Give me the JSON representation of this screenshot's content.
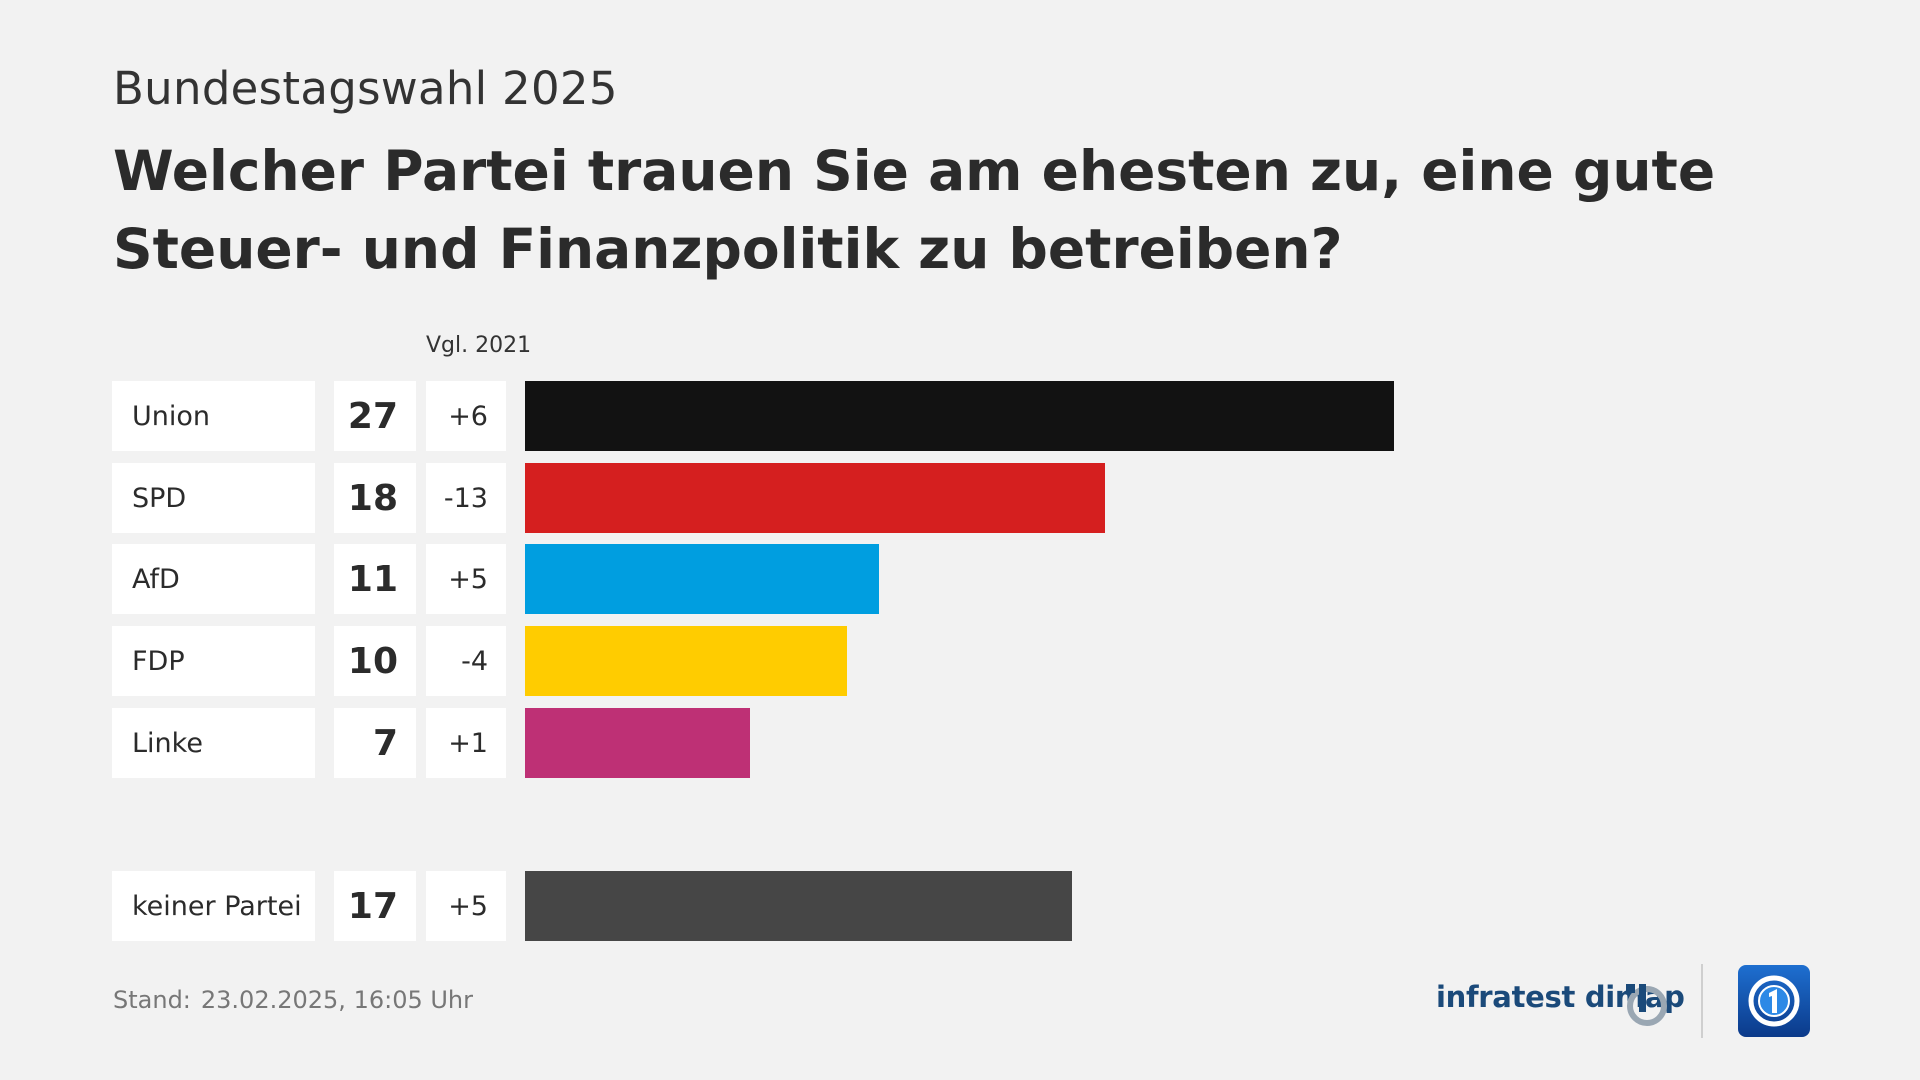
{
  "header": {
    "subtitle": "Bundestagswahl 2025",
    "title": "Welcher Partei trauen Sie am ehesten zu, eine gute Steuer- und Finanzpolitik zu betreiben?"
  },
  "chart_data": {
    "type": "bar",
    "orientation": "horizontal",
    "comparison_label": "Vgl. 2021",
    "categories": [
      "Union",
      "SPD",
      "AfD",
      "FDP",
      "Linke",
      "keiner Partei"
    ],
    "values": [
      27,
      18,
      11,
      10,
      7,
      17
    ],
    "changes": [
      "+6",
      "-13",
      "+5",
      "-4",
      "+1",
      "+5"
    ],
    "colors": [
      "#121212",
      "#d51f1f",
      "#009ee0",
      "#ffcc00",
      "#be3075",
      "#464646"
    ],
    "grid": false,
    "legend": "none"
  },
  "footer": {
    "stand_label": "Stand:",
    "stand_value": "23.02.2025, 16:05 Uhr",
    "brand": "infratest dimap",
    "brand_color": "#1b4a7a",
    "logo": "ard-tagesschau-logo-icon"
  }
}
